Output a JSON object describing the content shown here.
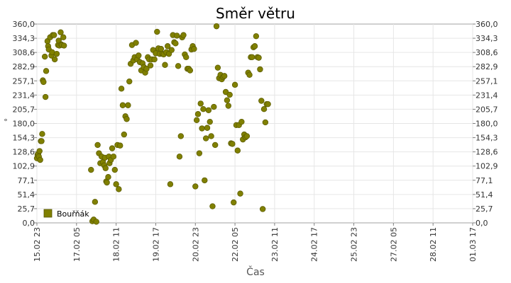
{
  "chart_data": {
    "type": "scatter",
    "title": "Směr větru",
    "xlabel": "Čas",
    "ylabel": "°",
    "ylim": [
      0,
      360
    ],
    "y_ticks": [
      "0,0",
      "25,7",
      "51,4",
      "77,1",
      "102,9",
      "128,6",
      "154,3",
      "180,0",
      "205,7",
      "231,4",
      "257,1",
      "282,9",
      "308,6",
      "334,3",
      "360,0"
    ],
    "xlim": [
      "15.02 23:00",
      "01.03 17:00"
    ],
    "x_ticks": [
      "15.02 23",
      "17.02 05",
      "18.02 11",
      "19.02 17",
      "20.02 23",
      "22.02 05",
      "23.02 11",
      "24.02 17",
      "25.02 23",
      "27.02 05",
      "28.02 11",
      "01.03 17"
    ],
    "grid": true,
    "legend_position": "bottom-left",
    "color": "#808000",
    "series": [
      {
        "name": "Bouřňák",
        "points": [
          [
            "15.02 23:00",
            117
          ],
          [
            "15.02 23:30",
            123
          ],
          [
            "16.02 00:00",
            125
          ],
          [
            "16.02 00:30",
            120
          ],
          [
            "16.02 01:00",
            130
          ],
          [
            "16.02 01:30",
            114
          ],
          [
            "16.02 02:00",
            148
          ],
          [
            "16.02 02:30",
            148
          ],
          [
            "16.02 03:00",
            161
          ],
          [
            "16.02 03:30",
            258
          ],
          [
            "16.02 04:00",
            255
          ],
          [
            "16.02 05:00",
            301
          ],
          [
            "16.02 05:30",
            228
          ],
          [
            "16.02 06:00",
            275
          ],
          [
            "16.02 07:00",
            329
          ],
          [
            "16.02 07:30",
            320
          ],
          [
            "16.02 08:00",
            314
          ],
          [
            "16.02 09:00",
            336
          ],
          [
            "16.02 10:00",
            303
          ],
          [
            "16.02 10:30",
            309
          ],
          [
            "16.02 11:00",
            340
          ],
          [
            "16.02 12:00",
            340
          ],
          [
            "16.02 12:30",
            296
          ],
          [
            "16.02 14:00",
            306
          ],
          [
            "16.02 15:00",
            322
          ],
          [
            "16.02 15:30",
            330
          ],
          [
            "16.02 16:00",
            321
          ],
          [
            "16.02 17:00",
            345
          ],
          [
            "16.02 17:30",
            323
          ],
          [
            "16.02 18:00",
            322
          ],
          [
            "16.02 19:00",
            336
          ],
          [
            "16.02 19:30",
            321
          ],
          [
            "17.02 16:00",
            96
          ],
          [
            "17.02 17:00",
            3
          ],
          [
            "17.02 18:00",
            6
          ],
          [
            "17.02 19:00",
            38
          ],
          [
            "17.02 20:00",
            2
          ],
          [
            "17.02 21:00",
            141
          ],
          [
            "17.02 22:00",
            126
          ],
          [
            "17.02 23:00",
            108
          ],
          [
            "18.02 00:00",
            120
          ],
          [
            "18.02 01:00",
            110
          ],
          [
            "18.02 02:00",
            104
          ],
          [
            "18.02 02:30",
            118
          ],
          [
            "18.02 03:00",
            99
          ],
          [
            "18.02 03:30",
            75
          ],
          [
            "18.02 04:00",
            73
          ],
          [
            "18.02 05:00",
            83
          ],
          [
            "18.02 05:30",
            120
          ],
          [
            "18.02 06:00",
            108
          ],
          [
            "18.02 07:00",
            114
          ],
          [
            "18.02 08:00",
            135
          ],
          [
            "18.02 09:00",
            120
          ],
          [
            "18.02 10:00",
            96
          ],
          [
            "18.02 11:00",
            70
          ],
          [
            "18.02 12:00",
            141
          ],
          [
            "18.02 13:00",
            61
          ],
          [
            "18.02 14:00",
            140
          ],
          [
            "18.02 15:00",
            243
          ],
          [
            "18.02 16:00",
            213
          ],
          [
            "18.02 17:00",
            160
          ],
          [
            "18.02 18:00",
            193
          ],
          [
            "18.02 19:00",
            188
          ],
          [
            "18.02 20:00",
            213
          ],
          [
            "18.02 21:00",
            256
          ],
          [
            "18.02 22:00",
            288
          ],
          [
            "18.02 23:00",
            322
          ],
          [
            "19.02 00:00",
            294
          ],
          [
            "19.02 01:00",
            300
          ],
          [
            "19.02 02:00",
            326
          ],
          [
            "19.02 03:00",
            296
          ],
          [
            "19.02 04:00",
            303
          ],
          [
            "19.02 05:00",
            291
          ],
          [
            "19.02 06:00",
            276
          ],
          [
            "19.02 07:00",
            289
          ],
          [
            "19.02 08:00",
            282
          ],
          [
            "19.02 09:00",
            272
          ],
          [
            "19.02 10:00",
            279
          ],
          [
            "19.02 11:00",
            300
          ],
          [
            "19.02 12:00",
            296
          ],
          [
            "19.02 13:00",
            285
          ],
          [
            "19.02 14:00",
            296
          ],
          [
            "19.02 15:00",
            313
          ],
          [
            "19.02 16:00",
            296
          ],
          [
            "19.02 17:00",
            307
          ],
          [
            "19.02 18:00",
            346
          ],
          [
            "19.02 19:00",
            316
          ],
          [
            "19.02 20:00",
            306
          ],
          [
            "19.02 21:00",
            315
          ],
          [
            "19.02 22:00",
            306
          ],
          [
            "19.02 23:00",
            305
          ],
          [
            "20.02 00:00",
            286
          ],
          [
            "20.02 01:00",
            309
          ],
          [
            "20.02 02:00",
            320
          ],
          [
            "20.02 03:00",
            306
          ],
          [
            "20.02 04:00",
            70
          ],
          [
            "20.02 05:00",
            313
          ],
          [
            "20.02 06:00",
            340
          ],
          [
            "20.02 07:00",
            327
          ],
          [
            "20.02 08:00",
            325
          ],
          [
            "20.02 09:00",
            339
          ],
          [
            "20.02 10:00",
            284
          ],
          [
            "20.02 11:00",
            120
          ],
          [
            "20.02 12:00",
            157
          ],
          [
            "20.02 13:00",
            336
          ],
          [
            "20.02 14:00",
            340
          ],
          [
            "20.02 15:00",
            305
          ],
          [
            "20.02 16:00",
            300
          ],
          [
            "20.02 17:00",
            279
          ],
          [
            "20.02 18:00",
            279
          ],
          [
            "20.02 19:00",
            276
          ],
          [
            "20.02 20:00",
            314
          ],
          [
            "20.02 21:00",
            320
          ],
          [
            "20.02 22:00",
            315
          ],
          [
            "20.02 23:00",
            66
          ],
          [
            "21.02 00:00",
            186
          ],
          [
            "21.02 01:00",
            197
          ],
          [
            "21.02 02:00",
            126
          ],
          [
            "21.02 03:00",
            216
          ],
          [
            "21.02 04:00",
            171
          ],
          [
            "21.02 05:00",
            206
          ],
          [
            "21.02 06:00",
            77
          ],
          [
            "21.02 07:00",
            153
          ],
          [
            "21.02 08:00",
            172
          ],
          [
            "21.02 09:00",
            204
          ],
          [
            "21.02 10:00",
            183
          ],
          [
            "21.02 11:00",
            157
          ],
          [
            "21.02 12:00",
            30
          ],
          [
            "21.02 13:00",
            210
          ],
          [
            "21.02 14:00",
            141
          ],
          [
            "21.02 15:00",
            356
          ],
          [
            "21.02 16:00",
            281
          ],
          [
            "21.02 17:00",
            262
          ],
          [
            "21.02 18:00",
            268
          ],
          [
            "21.02 19:00",
            260
          ],
          [
            "21.02 20:00",
            264
          ],
          [
            "21.02 21:00",
            266
          ],
          [
            "21.02 22:00",
            237
          ],
          [
            "21.02 23:00",
            222
          ],
          [
            "22.02 00:00",
            212
          ],
          [
            "22.02 01:00",
            232
          ],
          [
            "22.02 02:00",
            144
          ],
          [
            "22.02 03:00",
            143
          ],
          [
            "22.02 04:00",
            37
          ],
          [
            "22.02 05:00",
            250
          ],
          [
            "22.02 06:00",
            177
          ],
          [
            "22.02 07:00",
            131
          ],
          [
            "22.02 08:00",
            177
          ],
          [
            "22.02 09:00",
            53
          ],
          [
            "22.02 10:00",
            183
          ],
          [
            "22.02 11:00",
            151
          ],
          [
            "22.02 12:00",
            160
          ],
          [
            "22.02 13:00",
            155
          ],
          [
            "22.02 14:00",
            157
          ],
          [
            "22.02 15:00",
            272
          ],
          [
            "22.02 16:00",
            268
          ],
          [
            "22.02 17:00",
            300
          ],
          [
            "22.02 18:00",
            300
          ],
          [
            "22.02 19:00",
            318
          ],
          [
            "22.02 20:00",
            320
          ],
          [
            "22.02 21:00",
            338
          ],
          [
            "22.02 22:00",
            300
          ],
          [
            "22.02 23:00",
            299
          ],
          [
            "23.02 00:00",
            278
          ],
          [
            "23.02 01:00",
            221
          ],
          [
            "23.02 02:00",
            25
          ],
          [
            "23.02 03:00",
            206
          ],
          [
            "23.02 04:00",
            182
          ],
          [
            "23.02 05:00",
            215
          ],
          [
            "23.02 06:00",
            215
          ]
        ]
      }
    ]
  }
}
